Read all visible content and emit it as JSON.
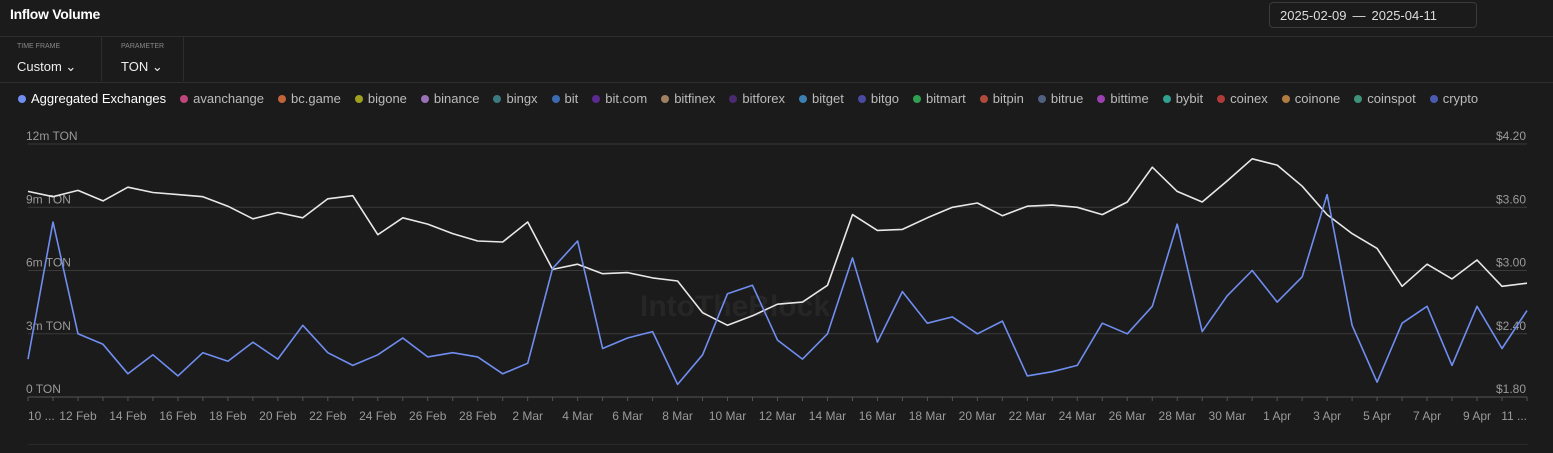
{
  "header": {
    "title": "Inflow Volume",
    "date_start": "2025-02-09",
    "date_separator": "—",
    "date_end": "2025-04-11"
  },
  "controls": [
    {
      "label": "TIME FRAME",
      "value": "Custom"
    },
    {
      "label": "PARAMETER",
      "value": "TON"
    }
  ],
  "watermark": "IntoTheBlock",
  "chart_data": {
    "type": "line",
    "legend_items": [
      {
        "name": "avanchange",
        "color": "#c0457a"
      },
      {
        "name": "bc.game",
        "color": "#c0643a"
      },
      {
        "name": "bigone",
        "color": "#a0a020"
      },
      {
        "name": "binance",
        "color": "#9a70b8"
      },
      {
        "name": "bingx",
        "color": "#3a7a80"
      },
      {
        "name": "bit",
        "color": "#3a6ab0"
      },
      {
        "name": "bit.com",
        "color": "#5a2a90"
      },
      {
        "name": "bitfinex",
        "color": "#a08060"
      },
      {
        "name": "bitforex",
        "color": "#4a2a70"
      },
      {
        "name": "bitget",
        "color": "#3a80b0"
      },
      {
        "name": "bitgo",
        "color": "#4a4aa0"
      },
      {
        "name": "bitmart",
        "color": "#30a050"
      },
      {
        "name": "bitpin",
        "color": "#b04a3a"
      },
      {
        "name": "bitrue",
        "color": "#506080"
      },
      {
        "name": "bittime",
        "color": "#9a40b0"
      },
      {
        "name": "bybit",
        "color": "#30a090"
      },
      {
        "name": "coinex",
        "color": "#b03a3a"
      },
      {
        "name": "coinone",
        "color": "#b07a40"
      },
      {
        "name": "coinspot",
        "color": "#40907a"
      },
      {
        "name": "crypto",
        "color": "#4a5ab0"
      }
    ],
    "categories": [
      "10 ...",
      null,
      "12 Feb",
      null,
      "14 Feb",
      null,
      "16 Feb",
      null,
      "18 Feb",
      null,
      "20 Feb",
      null,
      "22 Feb",
      null,
      "24 Feb",
      null,
      "26 Feb",
      null,
      "28 Feb",
      null,
      "2 Mar",
      null,
      "4 Mar",
      null,
      "6 Mar",
      null,
      "8 Mar",
      null,
      "10 Mar",
      null,
      "12 Mar",
      null,
      "14 Mar",
      null,
      "16 Mar",
      null,
      "18 Mar",
      null,
      "20 Mar",
      null,
      "22 Mar",
      null,
      "24 Mar",
      null,
      "26 Mar",
      null,
      "28 Mar",
      null,
      "30 Mar",
      null,
      "1 Apr",
      null,
      "3 Apr",
      null,
      "5 Apr",
      null,
      "7 Apr",
      null,
      "9 Apr",
      null,
      "11 ..."
    ],
    "series": [
      {
        "name": "Aggregated Exchanges",
        "color": "#6f8ef0",
        "values": [
          1800000,
          8300000,
          3000000,
          2500000,
          1100000,
          2000000,
          1000000,
          2100000,
          1700000,
          2600000,
          1800000,
          3400000,
          2100000,
          1500000,
          2000000,
          2800000,
          1900000,
          2100000,
          1900000,
          1100000,
          1600000,
          6100000,
          7400000,
          2300000,
          2800000,
          3100000,
          600000,
          2000000,
          4900000,
          5300000,
          2700000,
          1800000,
          3000000,
          6600000,
          2600000,
          5000000,
          3500000,
          3800000,
          3000000,
          3600000,
          1000000,
          1200000,
          1500000,
          3500000,
          3000000,
          4300000,
          8200000,
          3100000,
          4800000,
          6000000,
          4500000,
          5700000,
          9600000,
          3400000,
          700000,
          3500000,
          4300000,
          1500000,
          4300000,
          2300000,
          4100000
        ]
      },
      {
        "color": "#e8e8e8",
        "axis": "y2",
        "values": [
          3.75,
          3.7,
          3.76,
          3.66,
          3.79,
          3.74,
          3.72,
          3.7,
          3.61,
          3.49,
          3.55,
          3.5,
          3.68,
          3.71,
          3.34,
          3.5,
          3.44,
          3.35,
          3.28,
          3.27,
          3.46,
          3.01,
          3.06,
          2.97,
          2.98,
          2.93,
          2.9,
          2.6,
          2.48,
          2.57,
          2.68,
          2.7,
          2.86,
          3.53,
          3.38,
          3.39,
          3.5,
          3.6,
          3.64,
          3.52,
          3.61,
          3.62,
          3.6,
          3.53,
          3.65,
          3.98,
          3.75,
          3.65,
          3.85,
          4.06,
          4.0,
          3.8,
          3.53,
          3.35,
          3.21,
          2.85,
          3.06,
          2.92,
          3.1,
          2.85,
          2.88
        ]
      }
    ],
    "ylim": [
      0,
      12000000
    ],
    "yticks": [
      {
        "value": 0,
        "label": "0 TON"
      },
      {
        "value": 3000000,
        "label": "3m TON"
      },
      {
        "value": 6000000,
        "label": "6m TON"
      },
      {
        "value": 9000000,
        "label": "9m TON"
      },
      {
        "value": 12000000,
        "label": "12m TON"
      }
    ],
    "y2lim": [
      1.8,
      4.2
    ],
    "y2ticks": [
      {
        "value": 1.8,
        "label": "$1.80"
      },
      {
        "value": 2.4,
        "label": "$2.40"
      },
      {
        "value": 3.0,
        "label": "$3.00"
      },
      {
        "value": 3.6,
        "label": "$3.60"
      },
      {
        "value": 4.2,
        "label": "$4.20"
      }
    ],
    "grid": true
  }
}
